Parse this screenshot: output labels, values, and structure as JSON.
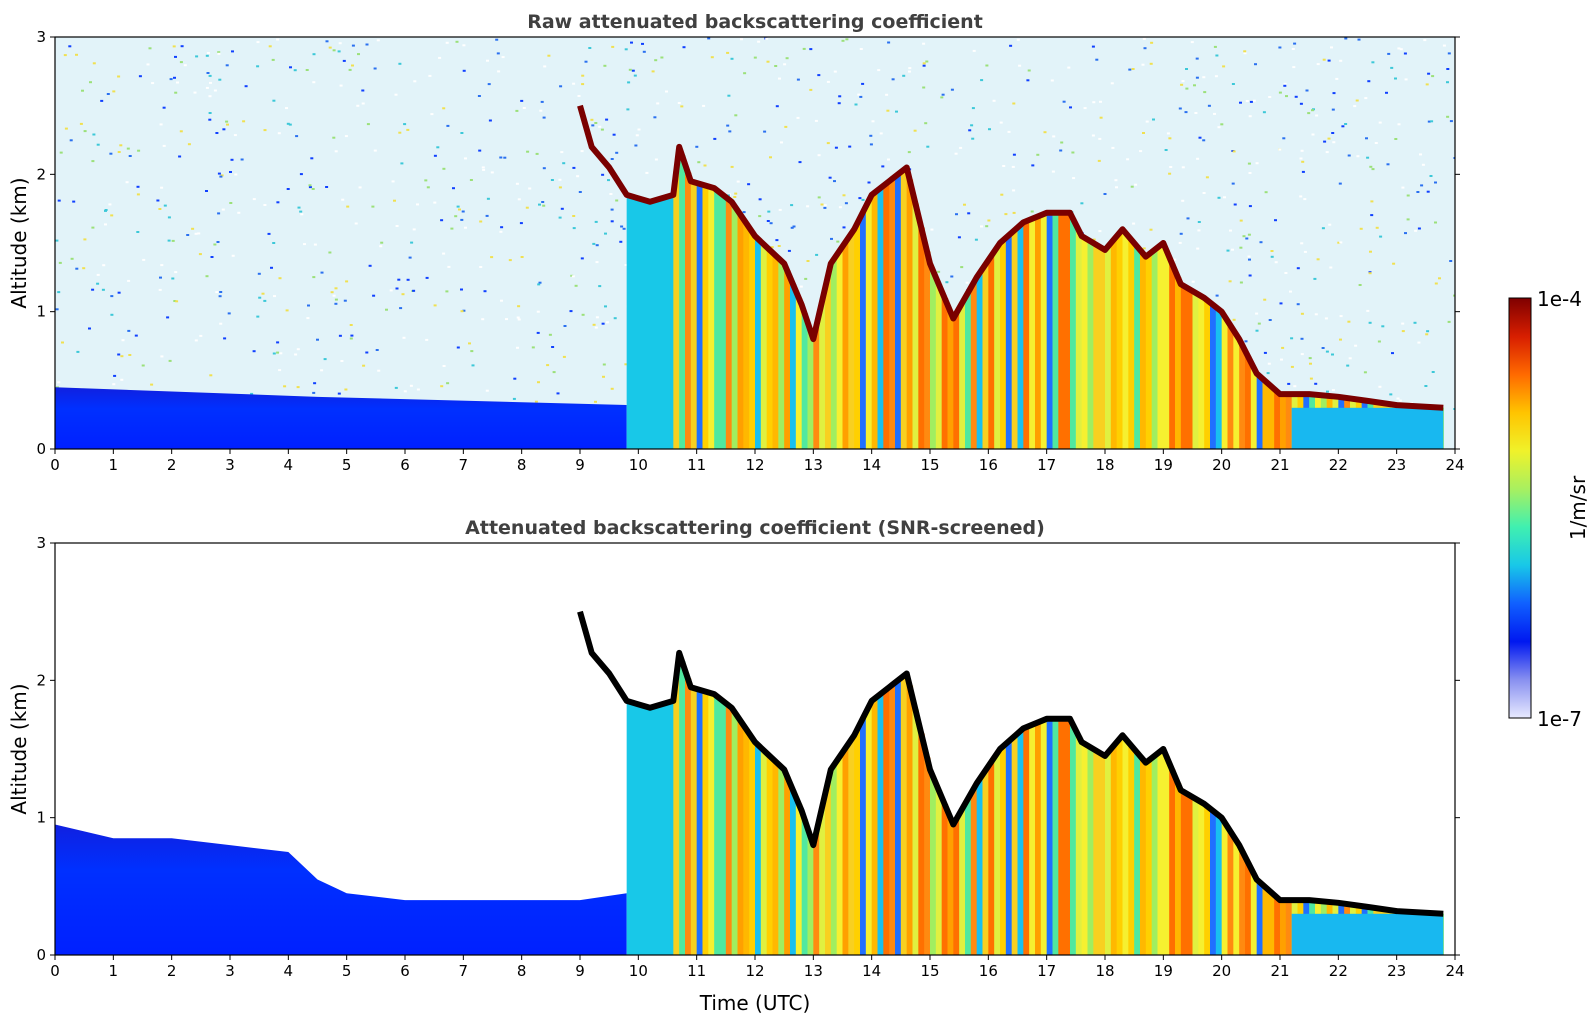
{
  "chart_data": [
    {
      "type": "heatmap",
      "title": "Raw attenuated backscattering coefficient",
      "ylabel": "Altitude (km)",
      "xlabel": "",
      "xlim": [
        0,
        24
      ],
      "ylim": [
        0,
        3
      ],
      "x_ticks": [
        "0",
        "1",
        "2",
        "3",
        "4",
        "5",
        "6",
        "7",
        "8",
        "9",
        "10",
        "11",
        "12",
        "13",
        "14",
        "15",
        "16",
        "17",
        "18",
        "19",
        "20",
        "21",
        "22",
        "23",
        "24"
      ],
      "y_ticks": [
        "0",
        "1",
        "2",
        "3"
      ],
      "data_end_hour": 23.8,
      "boundary_layer_top_km": {
        "hours": [
          9.0,
          9.2,
          9.5,
          9.8,
          10.2,
          10.6,
          10.7,
          10.9,
          11.3,
          11.6,
          12.0,
          12.5,
          12.8,
          13.0,
          13.3,
          13.7,
          14.0,
          14.3,
          14.6,
          15.0,
          15.4,
          15.8,
          16.2,
          16.6,
          17.0,
          17.4,
          17.6,
          18.0,
          18.3,
          18.7,
          19.0,
          19.3,
          19.7,
          20.0,
          20.3,
          20.6,
          21.0,
          21.5,
          22.0,
          22.5,
          23.0,
          23.8
        ],
        "values": [
          2.5,
          2.2,
          2.05,
          1.85,
          1.8,
          1.85,
          2.2,
          1.95,
          1.9,
          1.8,
          1.55,
          1.35,
          1.05,
          0.8,
          1.35,
          1.6,
          1.85,
          1.95,
          2.05,
          1.35,
          0.95,
          1.25,
          1.5,
          1.65,
          1.72,
          1.72,
          1.55,
          1.45,
          1.6,
          1.4,
          1.5,
          1.2,
          1.1,
          1.0,
          0.8,
          0.55,
          0.4,
          0.4,
          0.38,
          0.35,
          0.32,
          0.3
        ]
      }
    },
    {
      "type": "heatmap",
      "title": "Attenuated backscattering coefficient (SNR-screened)",
      "ylabel": "Altitude (km)",
      "xlabel": "Time (UTC)",
      "xlim": [
        0,
        24
      ],
      "ylim": [
        0,
        3
      ],
      "x_ticks": [
        "0",
        "1",
        "2",
        "3",
        "4",
        "5",
        "6",
        "7",
        "8",
        "9",
        "10",
        "11",
        "12",
        "13",
        "14",
        "15",
        "16",
        "17",
        "18",
        "19",
        "20",
        "21",
        "22",
        "23",
        "24"
      ],
      "y_ticks": [
        "0",
        "1",
        "2",
        "3"
      ],
      "screened_low_layer_top_km": {
        "hours": [
          0,
          1,
          2,
          3,
          4,
          4.5,
          5,
          6,
          7,
          8,
          9,
          9.8
        ],
        "values": [
          0.95,
          0.85,
          0.85,
          0.8,
          0.75,
          0.55,
          0.45,
          0.4,
          0.4,
          0.4,
          0.4,
          0.45
        ]
      }
    }
  ],
  "colorbar": {
    "label": "1/m/sr",
    "max_label": "1e-4",
    "min_label": "1e-7",
    "scale": "log",
    "colormap": [
      "#7f0000",
      "#d71e00",
      "#ff6a00",
      "#ffc400",
      "#f0f22a",
      "#a8f060",
      "#40f0b0",
      "#18c8e8",
      "#1060ff",
      "#0018f0",
      "#8890f0",
      "#e8eaff"
    ]
  }
}
